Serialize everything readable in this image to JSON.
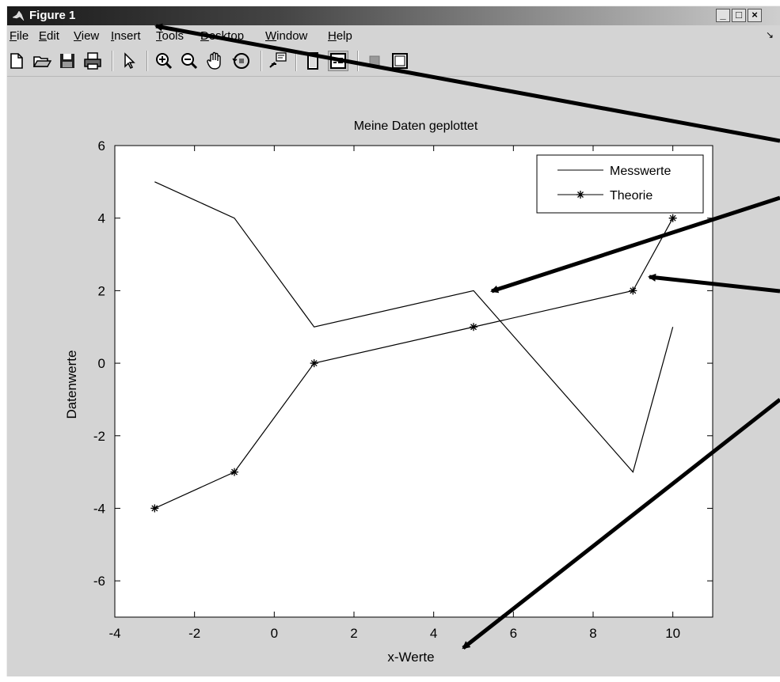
{
  "window": {
    "title": "Figure 1",
    "controls": [
      "_",
      "□",
      "×"
    ]
  },
  "menu": [
    {
      "label": "File",
      "u": "F",
      "rest": "ile"
    },
    {
      "label": "Edit",
      "u": "E",
      "rest": "dit"
    },
    {
      "label": "View",
      "u": "V",
      "rest": "iew"
    },
    {
      "label": "Insert",
      "u": "I",
      "rest": "nsert"
    },
    {
      "label": "Tools",
      "u": "T",
      "rest": "ools"
    },
    {
      "label": "Desktop",
      "u": "D",
      "rest": "esktop"
    },
    {
      "label": "Window",
      "u": "W",
      "rest": "indow"
    },
    {
      "label": "Help",
      "u": "H",
      "rest": "elp"
    }
  ],
  "toolbar": [
    "new-file-icon",
    "open-folder-icon",
    "save-icon",
    "print-icon",
    "pointer-icon",
    "zoom-in-icon",
    "zoom-out-icon",
    "pan-hand-icon",
    "rotate-3d-icon",
    "data-cursor-icon",
    "colorbar-icon",
    "legend-icon",
    "hide-plot-tools-icon",
    "show-plot-tools-icon"
  ],
  "chart_data": {
    "type": "line",
    "title": "Meine Daten geplottet",
    "xlabel": "x-Werte",
    "ylabel": "Datenwerte",
    "xlim": [
      -4,
      11
    ],
    "ylim": [
      -7,
      6
    ],
    "xticks": [
      -4,
      -2,
      0,
      2,
      4,
      6,
      8,
      10
    ],
    "yticks": [
      -6,
      -4,
      -2,
      0,
      2,
      4,
      6
    ],
    "legend_position": "top-right",
    "grid": false,
    "series": [
      {
        "name": "Messwerte",
        "marker": "none",
        "x": [
          -3,
          -1,
          1,
          5,
          9,
          10
        ],
        "y": [
          5,
          4,
          1,
          2,
          -3,
          1
        ]
      },
      {
        "name": "Theorie",
        "marker": "*",
        "x": [
          -3,
          -1,
          1,
          5,
          9,
          10
        ],
        "y": [
          -4,
          -3,
          0,
          1,
          2,
          4
        ]
      }
    ]
  },
  "colors": {
    "window_bg": "#d4d4d4",
    "axes_bg": "#ffffff",
    "line": "#000000"
  }
}
